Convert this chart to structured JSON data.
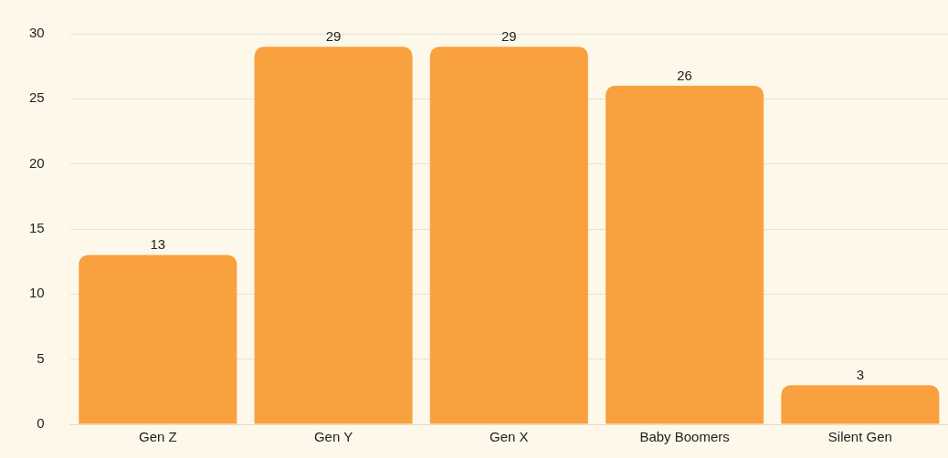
{
  "chart_data": {
    "type": "bar",
    "categories": [
      "Gen Z",
      "Gen Y",
      "Gen X",
      "Baby Boomers",
      "Silent Gen"
    ],
    "values": [
      13,
      29,
      29,
      26,
      3
    ],
    "color": "#f9a03f",
    "ylim": [
      0,
      30
    ],
    "yticks": [
      0,
      5,
      10,
      15,
      20,
      25,
      30
    ],
    "grid": "y",
    "data_labels": true,
    "legend": false
  }
}
